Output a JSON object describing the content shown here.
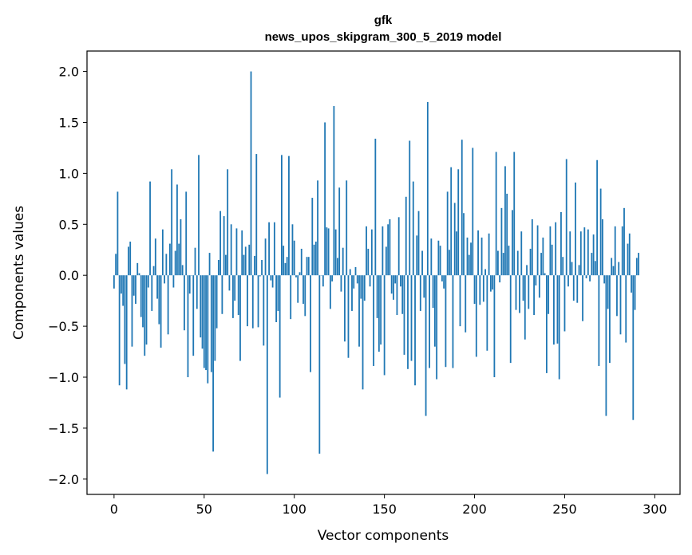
{
  "chart_data": {
    "type": "bar",
    "title": "gfk",
    "subtitle": "news_upos_skipgram_300_5_2019 model",
    "xlabel": "Vector components",
    "ylabel": "Components values",
    "xlim": [
      -15,
      314
    ],
    "ylim": [
      -2.15,
      2.2
    ],
    "xticks": [
      0,
      50,
      100,
      150,
      200,
      250,
      300
    ],
    "xtick_labels": [
      "0",
      "50",
      "100",
      "150",
      "200",
      "250",
      "300"
    ],
    "yticks": [
      -2.0,
      -1.5,
      -1.0,
      -0.5,
      0.0,
      0.5,
      1.0,
      1.5,
      2.0
    ],
    "ytick_labels": [
      "−2.0",
      "−1.5",
      "−1.0",
      "−0.5",
      "0.0",
      "0.5",
      "1.0",
      "1.5",
      "2.0"
    ],
    "grid": false,
    "bar_color": "#1f77b4",
    "values": [
      -0.13,
      0.21,
      0.82,
      -1.08,
      -0.18,
      -0.3,
      -0.87,
      -1.12,
      0.28,
      0.33,
      -0.7,
      -0.2,
      -0.28,
      0.12,
      0.02,
      -0.41,
      -0.51,
      -0.79,
      -0.68,
      -0.12,
      0.92,
      -0.35,
      0.09,
      0.36,
      -0.23,
      -0.48,
      -0.71,
      0.45,
      -0.08,
      0.21,
      -0.58,
      0.31,
      1.04,
      -0.12,
      0.24,
      0.89,
      0.31,
      0.55,
      0.1,
      -0.54,
      0.82,
      -1.0,
      -0.18,
      0.0,
      -0.79,
      0.27,
      -0.33,
      1.18,
      -0.61,
      -0.72,
      -0.91,
      -0.93,
      -1.06,
      0.22,
      -0.95,
      -1.73,
      -0.84,
      -0.52,
      0.15,
      0.63,
      -0.38,
      0.58,
      0.2,
      1.04,
      -0.15,
      0.5,
      -0.42,
      -0.25,
      0.46,
      -0.39,
      -0.84,
      0.44,
      0.2,
      0.28,
      -0.5,
      0.3,
      2.0,
      -0.52,
      0.19,
      1.19,
      -0.51,
      -0.01,
      0.15,
      -0.69,
      0.36,
      -1.95,
      0.52,
      -0.05,
      -0.12,
      0.52,
      -0.46,
      -0.35,
      -1.2,
      1.18,
      0.29,
      0.12,
      0.18,
      1.17,
      -0.43,
      0.5,
      0.34,
      -0.02,
      -0.27,
      0.03,
      0.26,
      -0.28,
      -0.4,
      0.18,
      0.18,
      -0.95,
      0.76,
      0.3,
      0.33,
      0.93,
      -1.75,
      0.0,
      -0.11,
      1.5,
      0.47,
      0.46,
      -0.33,
      -0.06,
      1.66,
      0.45,
      0.17,
      0.86,
      -0.16,
      0.27,
      -0.65,
      0.93,
      -0.81,
      0.06,
      -0.35,
      -0.13,
      0.08,
      -0.08,
      -0.7,
      -0.23,
      -1.12,
      -0.25,
      0.48,
      0.26,
      -0.11,
      0.45,
      -0.89,
      1.34,
      -0.42,
      -0.75,
      -0.68,
      0.48,
      -0.98,
      0.28,
      0.5,
      0.55,
      -0.18,
      -0.24,
      -0.08,
      -0.39,
      0.57,
      -0.11,
      -0.38,
      -0.78,
      0.77,
      -0.92,
      1.32,
      -0.84,
      0.92,
      -1.08,
      0.39,
      0.63,
      -0.35,
      0.24,
      -0.22,
      -1.38,
      1.7,
      -0.91,
      0.36,
      -0.32,
      -0.7,
      -1.02,
      0.34,
      0.29,
      -0.06,
      -0.13,
      -0.9,
      0.82,
      0.25,
      1.06,
      -0.91,
      0.71,
      0.43,
      1.04,
      -0.5,
      1.33,
      0.61,
      -0.56,
      0.37,
      0.2,
      0.32,
      1.25,
      -0.28,
      -0.8,
      0.44,
      -0.29,
      0.37,
      -0.26,
      0.06,
      -0.74,
      0.41,
      -0.16,
      -0.14,
      -1.0,
      1.21,
      0.24,
      -0.07,
      0.66,
      0.22,
      1.07,
      0.8,
      0.29,
      -0.86,
      0.64,
      1.21,
      -0.34,
      0.24,
      -0.37,
      0.43,
      -0.25,
      -0.63,
      0.1,
      -0.33,
      0.26,
      0.55,
      -0.39,
      -0.1,
      0.49,
      -0.22,
      0.22,
      0.37,
      0.02,
      -0.96,
      -0.38,
      0.48,
      0.3,
      -0.68,
      0.52,
      -0.67,
      -1.02,
      0.62,
      0.18,
      -0.55,
      1.14,
      -0.11,
      0.43,
      0.13,
      -0.25,
      0.91,
      -0.27,
      0.1,
      0.43,
      -0.45,
      0.47,
      -0.03,
      0.45,
      -0.06,
      0.22,
      0.4,
      0.14,
      1.13,
      -0.89,
      0.85,
      0.55,
      -0.08,
      -1.38,
      -0.33,
      -0.86,
      0.17,
      0.09,
      0.48,
      -0.4,
      0.13,
      -0.58,
      0.48,
      0.66,
      -0.66,
      0.31,
      0.41,
      -0.17,
      -1.42,
      -0.34,
      0.17,
      0.22
    ]
  }
}
